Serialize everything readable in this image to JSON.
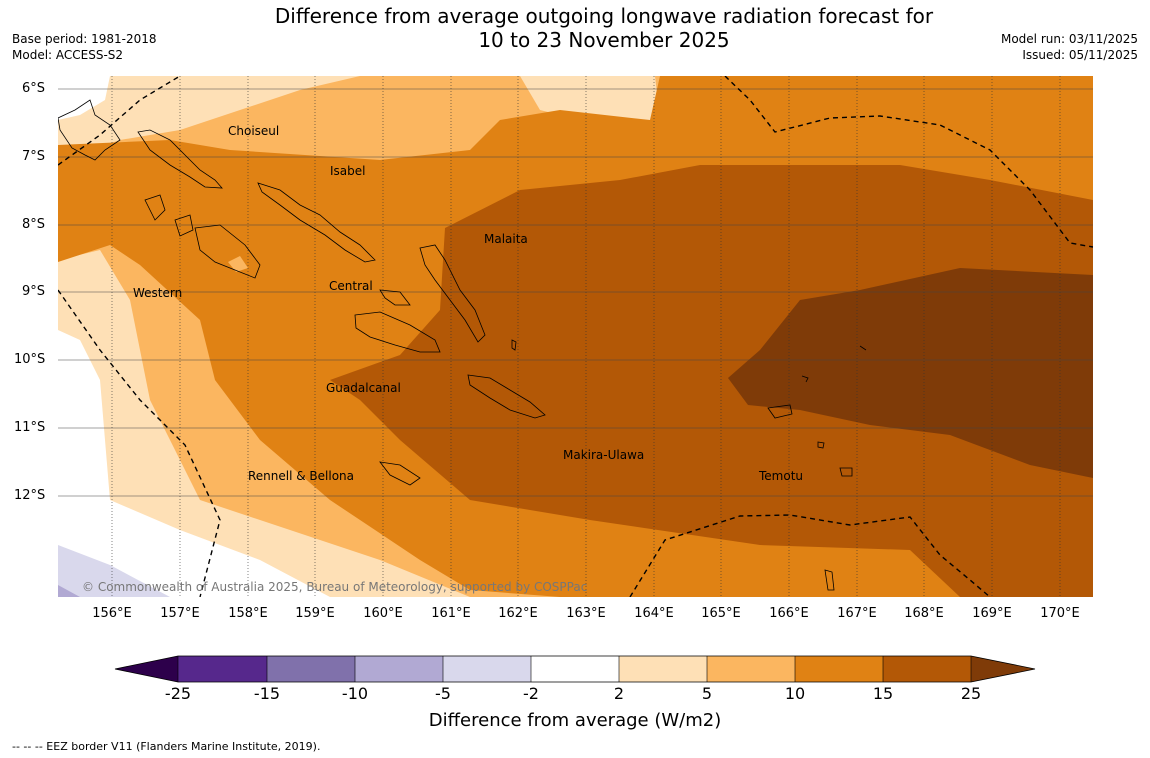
{
  "title_line1": "Difference from average outgoing longwave radiation forecast for",
  "title_line2": "10 to 23 November 2025",
  "base_period": "Base period: 1981-2018",
  "model": "Model: ACCESS-S2",
  "model_run": "Model run: 03/11/2025",
  "issued": "Issued: 05/11/2025",
  "lat_labels": [
    "6°S",
    "7°S",
    "8°S",
    "9°S",
    "10°S",
    "11°S",
    "12°S"
  ],
  "lon_labels": [
    "156°E",
    "157°E",
    "158°E",
    "159°E",
    "160°E",
    "161°E",
    "162°E",
    "163°E",
    "164°E",
    "165°E",
    "166°E",
    "167°E",
    "168°E",
    "169°E",
    "170°E"
  ],
  "regions": {
    "choiseul": "Choiseul",
    "isabel": "Isabel",
    "malaita": "Malaita",
    "western": "Western",
    "central": "Central",
    "guadalcanal": "Guadalcanal",
    "makira": "Makira-Ulawa",
    "temotu": "Temotu",
    "rennell": "Rennell & Bellona"
  },
  "copyright": "© Commonwealth of Australia 2025, Bureau of Meteorology, supported by COSPPac",
  "colorbar": {
    "ticks": [
      "-25",
      "-15",
      "-10",
      "-5",
      "-2",
      "2",
      "5",
      "10",
      "15",
      "25"
    ],
    "colors": [
      "#56288c",
      "#8071ab",
      "#b1a9d3",
      "#d9d8ec",
      "#ffffff",
      "#fee0b6",
      "#fbb660",
      "#e08214",
      "#b35806",
      "#7f3b08",
      "#2d004b"
    ],
    "title": "Difference from average (W/m2)"
  },
  "footnote": "--  --  -- EEZ border V11 (Flanders Marine Institute, 2019)."
}
